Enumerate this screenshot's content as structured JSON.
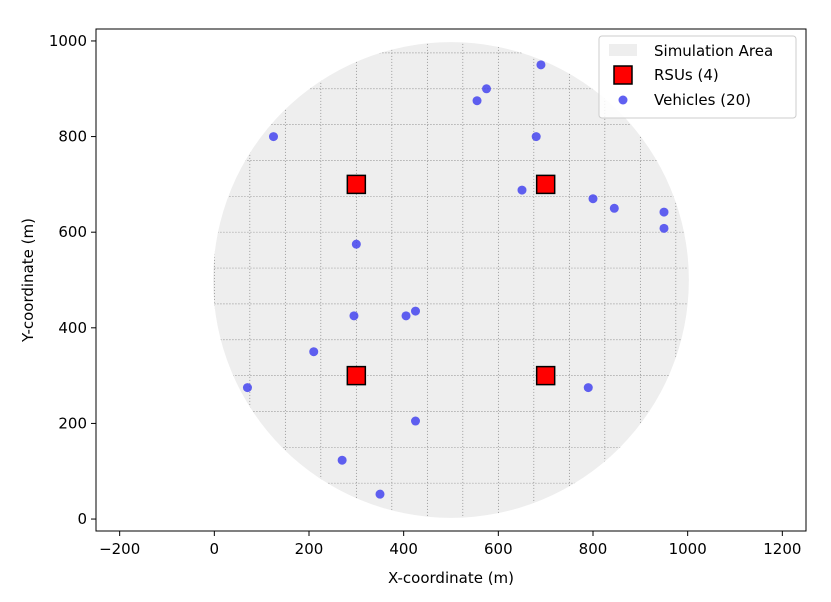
{
  "chart_data": {
    "type": "scatter",
    "title": "",
    "xlabel": "X-coordinate (m)",
    "ylabel": "Y-coordinate (m)",
    "xlim": [
      -250,
      1250
    ],
    "ylim": [
      -25,
      1025
    ],
    "xticks": [
      -200,
      0,
      200,
      400,
      600,
      800,
      1000,
      1200
    ],
    "yticks": [
      0,
      200,
      400,
      600,
      800,
      1000
    ],
    "xtick_labels": [
      "−200",
      "0",
      "200",
      "400",
      "600",
      "800",
      "1000",
      "1200"
    ],
    "ytick_labels": [
      "0",
      "200",
      "400",
      "600",
      "800",
      "1000"
    ],
    "grid": "dotted 75 m spacing, clipped to simulation area",
    "legend_position": "top-right",
    "simulation_area": {
      "name": "Simulation Area",
      "center": [
        500,
        500
      ],
      "radius": 500,
      "color": "#eeeeee"
    },
    "series": [
      {
        "name": "RSUs (4)",
        "marker": "square",
        "color": "#ff0000",
        "edge_color": "#000000",
        "points": [
          [
            300,
            700
          ],
          [
            700,
            700
          ],
          [
            300,
            300
          ],
          [
            700,
            300
          ]
        ]
      },
      {
        "name": "Vehicles (20)",
        "marker": "circle",
        "color": "#4444ee",
        "points": [
          [
            690,
            950
          ],
          [
            575,
            900
          ],
          [
            555,
            875
          ],
          [
            125,
            800
          ],
          [
            680,
            800
          ],
          [
            650,
            688
          ],
          [
            800,
            670
          ],
          [
            845,
            650
          ],
          [
            950,
            642
          ],
          [
            950,
            608
          ],
          [
            300,
            575
          ],
          [
            425,
            435
          ],
          [
            405,
            425
          ],
          [
            295,
            425
          ],
          [
            210,
            350
          ],
          [
            790,
            275
          ],
          [
            70,
            275
          ],
          [
            425,
            205
          ],
          [
            270,
            123
          ],
          [
            350,
            52
          ]
        ]
      }
    ]
  }
}
